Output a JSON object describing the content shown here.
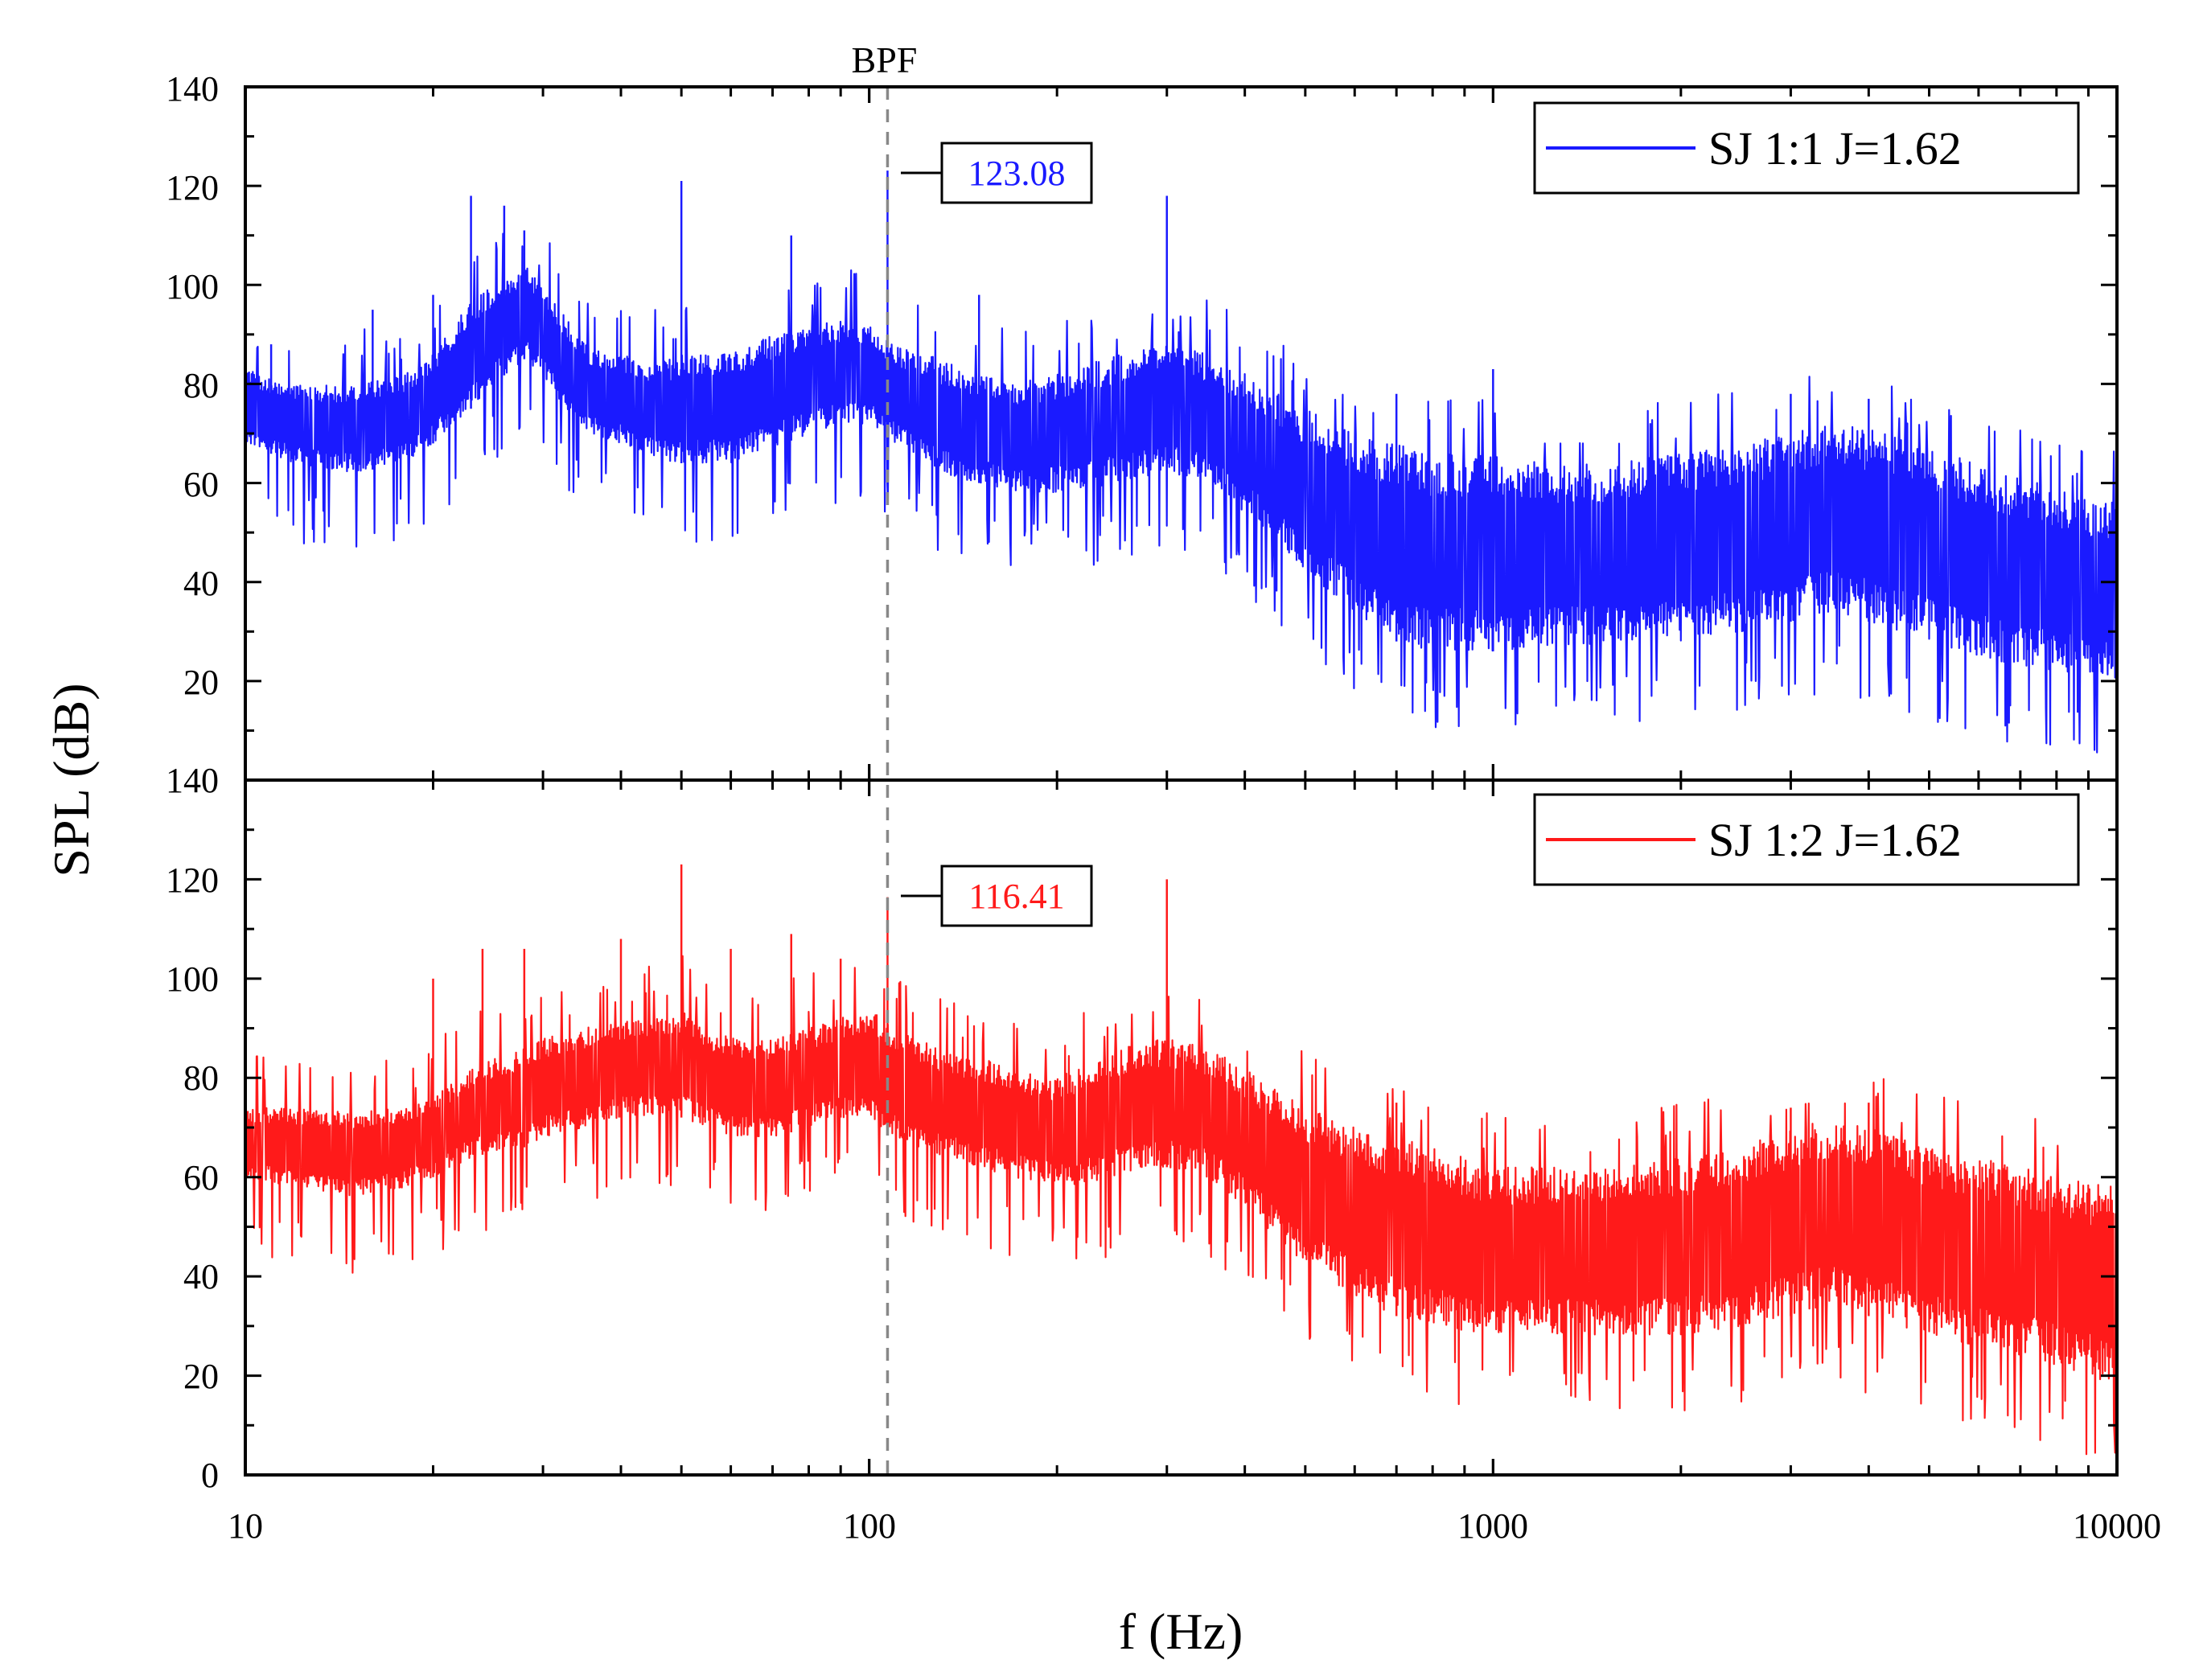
{
  "chart_data": {
    "type": "line",
    "xscale": "log",
    "xlabel": "f (Hz)",
    "ylabel": "SPL (dB)",
    "xlim": [
      10,
      10000
    ],
    "x_ticks": [
      "10",
      "100",
      "1000",
      "10000"
    ],
    "bpf": {
      "label": "BPF",
      "frequency": 107
    },
    "panels": [
      {
        "name": "SJ 1:1 J=1.62",
        "color": "#1a1aff",
        "ylim": [
          0,
          140
        ],
        "y_ticks": [
          "20",
          "40",
          "60",
          "80",
          "100",
          "120",
          "140"
        ],
        "peak_label": "123.08",
        "peak_value": 123.08,
        "envelope": {
          "freq_hz": [
            10,
            12,
            15,
            18,
            20,
            23,
            25,
            28,
            30,
            32,
            35,
            40,
            45,
            50,
            55,
            60,
            70,
            80,
            90,
            100,
            110,
            130,
            150,
            170,
            200,
            250,
            300,
            350,
            400,
            500,
            600,
            700,
            800,
            1000,
            1200,
            1500,
            2000,
            2500,
            3000,
            3500,
            4000,
            5000,
            6000,
            7000,
            8000,
            10000
          ],
          "upper": [
            83,
            80,
            80,
            82,
            86,
            97,
            100,
            104,
            100,
            95,
            88,
            86,
            84,
            86,
            86,
            86,
            90,
            92,
            93,
            92,
            88,
            85,
            82,
            80,
            82,
            86,
            88,
            86,
            82,
            75,
            70,
            68,
            66,
            66,
            64,
            64,
            66,
            68,
            70,
            72,
            71,
            67,
            64,
            61,
            59,
            56
          ],
          "lower": [
            68,
            64,
            62,
            64,
            68,
            75,
            80,
            85,
            82,
            76,
            70,
            68,
            65,
            64,
            64,
            64,
            67,
            70,
            72,
            72,
            68,
            62,
            60,
            58,
            58,
            60,
            62,
            60,
            54,
            42,
            34,
            28,
            26,
            26,
            27,
            27,
            28,
            30,
            32,
            34,
            32,
            28,
            25,
            23,
            22,
            20
          ]
        },
        "spikes": [
          {
            "f": 11,
            "db": 88
          },
          {
            "f": 16,
            "db": 95
          },
          {
            "f": 20,
            "db": 98
          },
          {
            "f": 23,
            "db": 118
          },
          {
            "f": 26,
            "db": 116
          },
          {
            "f": 28,
            "db": 111
          },
          {
            "f": 50,
            "db": 121
          },
          {
            "f": 75,
            "db": 110
          },
          {
            "f": 107,
            "db": 123.08
          },
          {
            "f": 150,
            "db": 98
          },
          {
            "f": 300,
            "db": 118
          },
          {
            "f": 700,
            "db": 78
          },
          {
            "f": 1000,
            "db": 83
          },
          {
            "f": 3000,
            "db": 78
          },
          {
            "f": 4000,
            "db": 77
          }
        ]
      },
      {
        "name": "SJ 1:2 J=1.62",
        "color": "#ff1a1a",
        "ylim": [
          0,
          140
        ],
        "y_ticks": [
          "0",
          "20",
          "40",
          "60",
          "80",
          "100",
          "120",
          "140"
        ],
        "peak_label": "116.41",
        "peak_value": 116.41,
        "envelope": {
          "freq_hz": [
            10,
            12,
            15,
            18,
            20,
            23,
            25,
            28,
            30,
            35,
            40,
            45,
            50,
            55,
            60,
            70,
            80,
            90,
            100,
            110,
            130,
            150,
            170,
            200,
            250,
            300,
            350,
            400,
            500,
            600,
            700,
            800,
            1000,
            1200,
            1500,
            2000,
            2500,
            3000,
            3500,
            4000,
            5000,
            6000,
            7000,
            8000,
            10000
          ],
          "upper": [
            74,
            74,
            73,
            74,
            76,
            82,
            84,
            86,
            88,
            90,
            92,
            92,
            94,
            90,
            88,
            88,
            90,
            92,
            94,
            90,
            86,
            84,
            82,
            80,
            86,
            88,
            86,
            82,
            74,
            70,
            68,
            66,
            62,
            62,
            62,
            64,
            66,
            70,
            72,
            70,
            66,
            64,
            62,
            60,
            58
          ],
          "lower": [
            60,
            58,
            56,
            58,
            60,
            64,
            65,
            66,
            68,
            70,
            72,
            72,
            72,
            70,
            68,
            68,
            70,
            72,
            72,
            68,
            64,
            62,
            60,
            58,
            60,
            62,
            60,
            54,
            42,
            36,
            32,
            30,
            28,
            28,
            28,
            28,
            30,
            32,
            34,
            32,
            28,
            26,
            24,
            22,
            18
          ]
        },
        "spikes": [
          {
            "f": 20,
            "db": 100
          },
          {
            "f": 24,
            "db": 106
          },
          {
            "f": 28,
            "db": 106
          },
          {
            "f": 40,
            "db": 108
          },
          {
            "f": 50,
            "db": 123
          },
          {
            "f": 60,
            "db": 106
          },
          {
            "f": 75,
            "db": 109
          },
          {
            "f": 90,
            "db": 104
          },
          {
            "f": 107,
            "db": 116.41
          },
          {
            "f": 300,
            "db": 120
          },
          {
            "f": 700,
            "db": 75
          },
          {
            "f": 3000,
            "db": 74
          },
          {
            "f": 4000,
            "db": 75
          }
        ]
      }
    ]
  }
}
